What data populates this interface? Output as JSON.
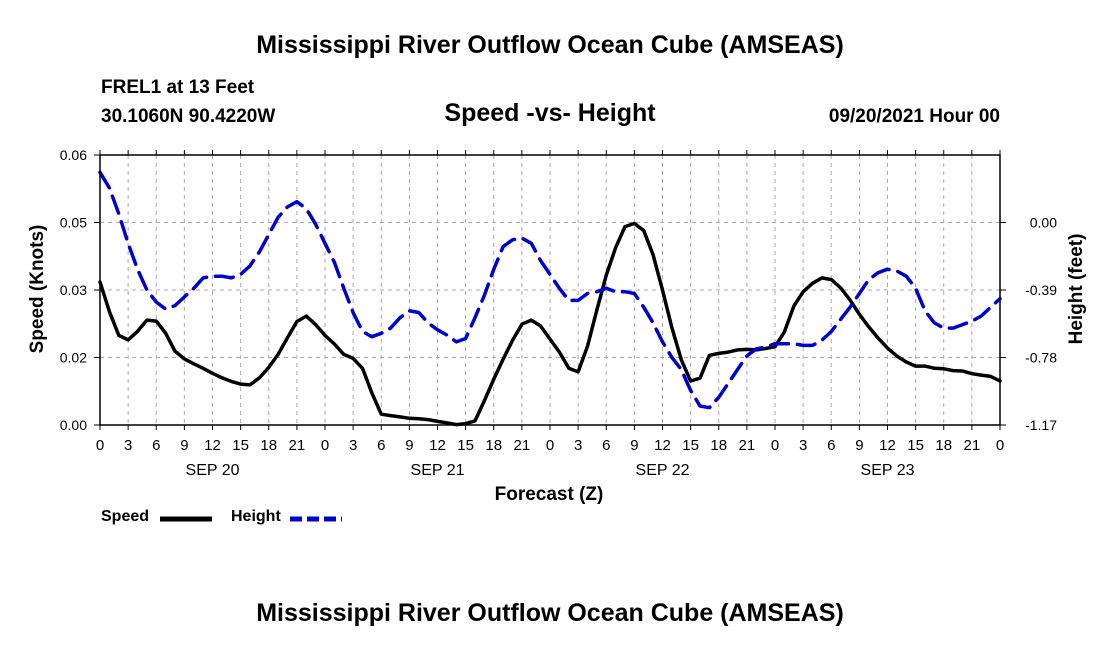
{
  "header": {
    "title": "Mississippi River Outflow Ocean Cube (AMSEAS)",
    "station": "FREL1 at 13 Feet",
    "coords": "30.1060N  90.4220W",
    "datetime": "09/20/2021 Hour 00",
    "footer_title": "Mississippi River Outflow Ocean Cube (AMSEAS)"
  },
  "legend": {
    "speed": "Speed",
    "height": "Height"
  },
  "colors": {
    "speed": "#000000",
    "height": "#0000cc",
    "grid": "#aaaaaa"
  },
  "chart_data": {
    "type": "line",
    "title": "Speed -vs- Height",
    "xlabel": "Forecast (Z)",
    "ylabel": "Speed (Knots)",
    "y2label": "Height (feet)",
    "xlim": [
      0,
      96
    ],
    "x_tick_labels": [
      "0",
      "3",
      "6",
      "9",
      "12",
      "15",
      "18",
      "21",
      "0",
      "3",
      "6",
      "9",
      "12",
      "15",
      "18",
      "21",
      "0",
      "3",
      "6",
      "9",
      "12",
      "15",
      "18",
      "21",
      "0",
      "3",
      "6",
      "9",
      "12",
      "15",
      "18",
      "21",
      "0"
    ],
    "day_labels": [
      {
        "label": "SEP 20",
        "x": 12
      },
      {
        "label": "SEP 21",
        "x": 36
      },
      {
        "label": "SEP 22",
        "x": 60
      },
      {
        "label": "SEP 23",
        "x": 84
      }
    ],
    "ylim": [
      0,
      0.06
    ],
    "y_ticks": [
      {
        "value": 0.0,
        "label": "0.00"
      },
      {
        "value": 0.015,
        "label": "0.02"
      },
      {
        "value": 0.03,
        "label": "0.03"
      },
      {
        "value": 0.045,
        "label": "0.05"
      },
      {
        "value": 0.06,
        "label": "0.06"
      }
    ],
    "y2lim": [
      -1.17,
      0.39
    ],
    "y2_ticks": [
      {
        "value": -1.17,
        "label": "-1.17"
      },
      {
        "value": -0.78,
        "label": "-0.78"
      },
      {
        "value": -0.39,
        "label": "-0.39"
      },
      {
        "value": 0.0,
        "label": "0.00"
      }
    ],
    "grid": true,
    "series": [
      {
        "name": "Speed",
        "axis": "left",
        "style": "solid",
        "x": [
          0,
          1,
          2,
          3,
          4,
          5,
          6,
          7,
          8,
          9,
          10,
          11,
          12,
          13,
          14,
          15,
          16,
          17,
          18,
          19,
          20,
          21,
          22,
          23,
          24,
          25,
          26,
          27,
          28,
          29,
          30,
          31,
          32,
          33,
          34,
          35,
          36,
          37,
          38,
          39,
          40,
          41,
          42,
          43,
          44,
          45,
          46,
          47,
          48,
          49,
          50,
          51,
          52,
          53,
          54,
          55,
          56,
          57,
          58,
          59,
          60,
          61,
          62,
          63,
          64,
          65,
          66,
          67,
          68,
          69,
          70,
          71,
          72,
          73,
          74,
          75,
          76,
          77,
          78,
          79,
          80,
          81,
          82,
          83,
          84,
          85,
          86,
          87,
          88,
          89,
          90,
          91,
          92,
          93,
          94,
          95,
          96
        ],
        "values": [
          0.0318,
          0.0252,
          0.0199,
          0.0189,
          0.0208,
          0.0233,
          0.0231,
          0.0204,
          0.0164,
          0.0147,
          0.0136,
          0.0126,
          0.0115,
          0.0105,
          0.0097,
          0.0091,
          0.0089,
          0.0105,
          0.0128,
          0.0157,
          0.0194,
          0.023,
          0.0242,
          0.0223,
          0.0199,
          0.018,
          0.0157,
          0.0148,
          0.0126,
          0.0071,
          0.0024,
          0.0021,
          0.0018,
          0.0015,
          0.0014,
          0.0012,
          0.0008,
          0.0005,
          0.0001,
          0.0003,
          0.0009,
          0.0054,
          0.0102,
          0.0146,
          0.0188,
          0.0224,
          0.0233,
          0.022,
          0.0191,
          0.0162,
          0.0126,
          0.0118,
          0.0175,
          0.0256,
          0.0333,
          0.0394,
          0.0441,
          0.0448,
          0.0432,
          0.0378,
          0.03,
          0.0216,
          0.0145,
          0.0098,
          0.0104,
          0.0155,
          0.0159,
          0.0162,
          0.0167,
          0.0168,
          0.0167,
          0.017,
          0.0174,
          0.0207,
          0.0264,
          0.0296,
          0.0315,
          0.0327,
          0.0323,
          0.0305,
          0.0278,
          0.0246,
          0.0218,
          0.0193,
          0.0171,
          0.0153,
          0.014,
          0.0131,
          0.0131,
          0.0126,
          0.0125,
          0.0121,
          0.012,
          0.0114,
          0.0111,
          0.0108,
          0.0098
        ]
      },
      {
        "name": "Height",
        "axis": "right",
        "style": "dashed",
        "x": [
          0,
          1,
          2,
          3,
          4,
          5,
          6,
          7,
          8,
          9,
          10,
          11,
          12,
          13,
          14,
          15,
          16,
          17,
          18,
          19,
          20,
          21,
          22,
          23,
          24,
          25,
          26,
          27,
          28,
          29,
          30,
          31,
          32,
          33,
          34,
          35,
          36,
          37,
          38,
          39,
          40,
          41,
          42,
          43,
          44,
          45,
          46,
          47,
          48,
          49,
          50,
          51,
          52,
          53,
          54,
          55,
          56,
          57,
          58,
          59,
          60,
          61,
          62,
          63,
          64,
          65,
          66,
          67,
          68,
          69,
          70,
          71,
          72,
          73,
          74,
          75,
          76,
          77,
          78,
          79,
          80,
          81,
          82,
          83,
          84,
          85,
          86,
          87,
          88,
          89,
          90,
          91,
          92,
          93,
          94,
          95,
          96
        ],
        "values": [
          0.29,
          0.2,
          0.05,
          -0.12,
          -0.27,
          -0.39,
          -0.46,
          -0.5,
          -0.48,
          -0.43,
          -0.38,
          -0.32,
          -0.31,
          -0.31,
          -0.32,
          -0.3,
          -0.25,
          -0.17,
          -0.07,
          0.03,
          0.09,
          0.12,
          0.08,
          -0.01,
          -0.12,
          -0.23,
          -0.38,
          -0.52,
          -0.63,
          -0.66,
          -0.64,
          -0.61,
          -0.55,
          -0.51,
          -0.52,
          -0.58,
          -0.62,
          -0.65,
          -0.69,
          -0.67,
          -0.55,
          -0.42,
          -0.27,
          -0.14,
          -0.1,
          -0.09,
          -0.12,
          -0.22,
          -0.3,
          -0.38,
          -0.45,
          -0.45,
          -0.41,
          -0.4,
          -0.38,
          -0.4,
          -0.4,
          -0.41,
          -0.49,
          -0.58,
          -0.69,
          -0.78,
          -0.85,
          -0.97,
          -1.06,
          -1.07,
          -1.01,
          -0.93,
          -0.85,
          -0.77,
          -0.73,
          -0.72,
          -0.7,
          -0.7,
          -0.7,
          -0.71,
          -0.71,
          -0.68,
          -0.63,
          -0.56,
          -0.49,
          -0.41,
          -0.33,
          -0.29,
          -0.27,
          -0.28,
          -0.31,
          -0.38,
          -0.51,
          -0.58,
          -0.61,
          -0.61,
          -0.59,
          -0.57,
          -0.54,
          -0.49,
          -0.44
        ]
      }
    ]
  }
}
